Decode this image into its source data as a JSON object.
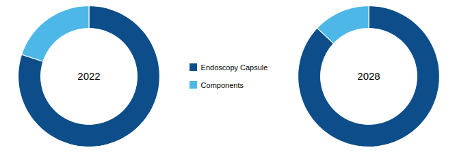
{
  "chart_data": [
    {
      "type": "pie",
      "title": "2022",
      "categories": [
        "Endoscopy Capsule",
        "Components"
      ],
      "values": [
        80,
        20
      ],
      "colors": [
        "#0d4e8a",
        "#4db8e8"
      ],
      "legend": "center"
    },
    {
      "type": "pie",
      "title": "2028",
      "categories": [
        "Endoscopy Capsule",
        "Components"
      ],
      "values": [
        87,
        13
      ],
      "colors": [
        "#0d4e8a",
        "#4db8e8"
      ],
      "legend": "center"
    }
  ]
}
